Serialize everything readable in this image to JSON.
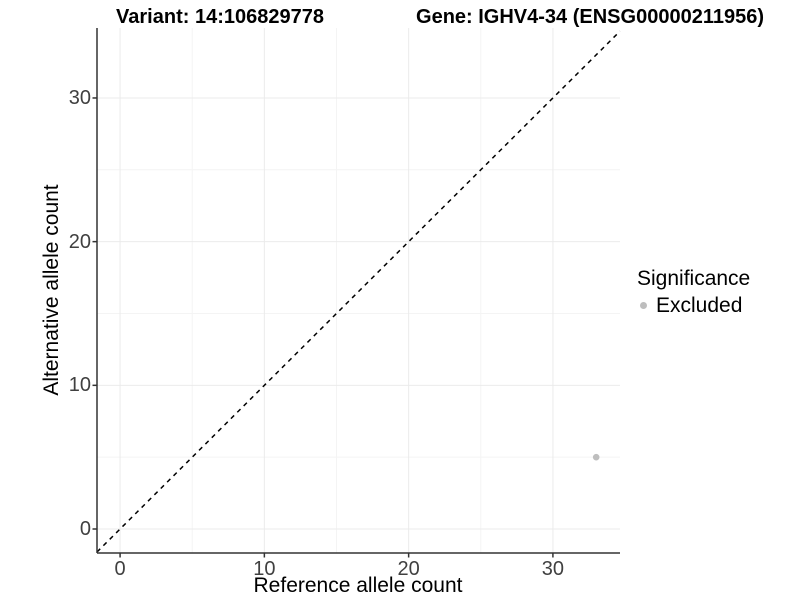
{
  "chart_data": {
    "type": "scatter",
    "title_left": "Variant: 14:106829778",
    "title_right": "Gene: IGHV4-34 (ENSG00000211956)",
    "xlabel": "Reference allele count",
    "ylabel": "Alternative allele count",
    "xlim": [
      -1.6,
      34.65
    ],
    "ylim": [
      -1.67,
      34.87
    ],
    "x_ticks": [
      0,
      10,
      20,
      30
    ],
    "y_ticks": [
      0,
      10,
      20,
      30
    ],
    "x_minor_ticks": [
      5,
      15,
      25
    ],
    "y_minor_ticks": [
      5,
      15,
      25
    ],
    "grid": true,
    "identity_line": {
      "type": "dashed",
      "equation": "y = x",
      "color": "#000000"
    },
    "series": [
      {
        "name": "Excluded",
        "color": "#bebebe",
        "points": [
          {
            "x": 33,
            "y": 5
          }
        ]
      }
    ],
    "legend": {
      "position": "right",
      "title": "Significance",
      "items": [
        {
          "label": "Excluded",
          "color": "#bebebe"
        }
      ]
    },
    "colors": {
      "background": "#ffffff",
      "axis_line": "#333333",
      "tick_mark": "#333333",
      "tick_text": "#404040",
      "grid_major": "#ebebeb",
      "grid_minor": "#f4f4f4"
    }
  }
}
